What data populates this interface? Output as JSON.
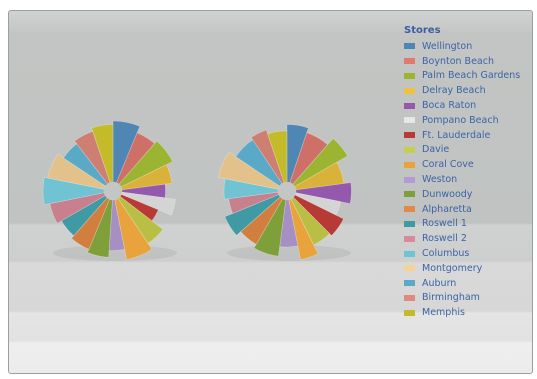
{
  "chart_data": {
    "type": "pie",
    "variant": "doughnut",
    "legend_title": "Stores",
    "legend_position": "right",
    "categories": [
      "Wellington",
      "Boynton Beach",
      "Palm Beach Gardens",
      "Delray Beach",
      "Boca Raton",
      "Pompano Beach",
      "Ft. Lauderdale",
      "Davie",
      "Coral Cove",
      "Weston",
      "Dunwoody",
      "Alpharetta",
      "Roswell 1",
      "Roswell 2",
      "Columbus",
      "Montgomery",
      "Auburn",
      "Birmingham",
      "Memphis"
    ],
    "colors": [
      "#4f86b4",
      "#e07a70",
      "#9bb532",
      "#eec23e",
      "#9459ad",
      "#e6e6e6",
      "#b83a36",
      "#c9ce4a",
      "#e8a33c",
      "#b49bd3",
      "#7f9f3a",
      "#e38945",
      "#3f9aa3",
      "#d98a9a",
      "#6fc3d2",
      "#f7d296",
      "#5aa9c6",
      "#df8a7c",
      "#c4bb2a"
    ],
    "series": [
      {
        "values": [
          6,
          5,
          6,
          5,
          4,
          4,
          4,
          5,
          6,
          4,
          5,
          5,
          5,
          5,
          6,
          6,
          5,
          5,
          5
        ],
        "radii": [
          1.0,
          0.9,
          0.95,
          0.85,
          0.75,
          0.9,
          0.7,
          0.9,
          1.0,
          0.85,
          0.95,
          0.9,
          0.85,
          0.92,
          1.0,
          0.95,
          0.85,
          0.9,
          0.95
        ]
      },
      {
        "values": [
          5,
          6,
          5,
          6,
          5,
          4,
          5,
          5,
          4,
          5,
          6,
          5,
          5,
          4,
          5,
          6,
          6,
          4,
          5
        ],
        "radii": [
          0.95,
          0.88,
          1.0,
          0.82,
          0.92,
          0.78,
          0.9,
          0.86,
          1.0,
          0.8,
          0.94,
          0.88,
          0.96,
          0.84,
          0.9,
          1.0,
          0.88,
          0.92,
          0.86
        ]
      }
    ]
  }
}
